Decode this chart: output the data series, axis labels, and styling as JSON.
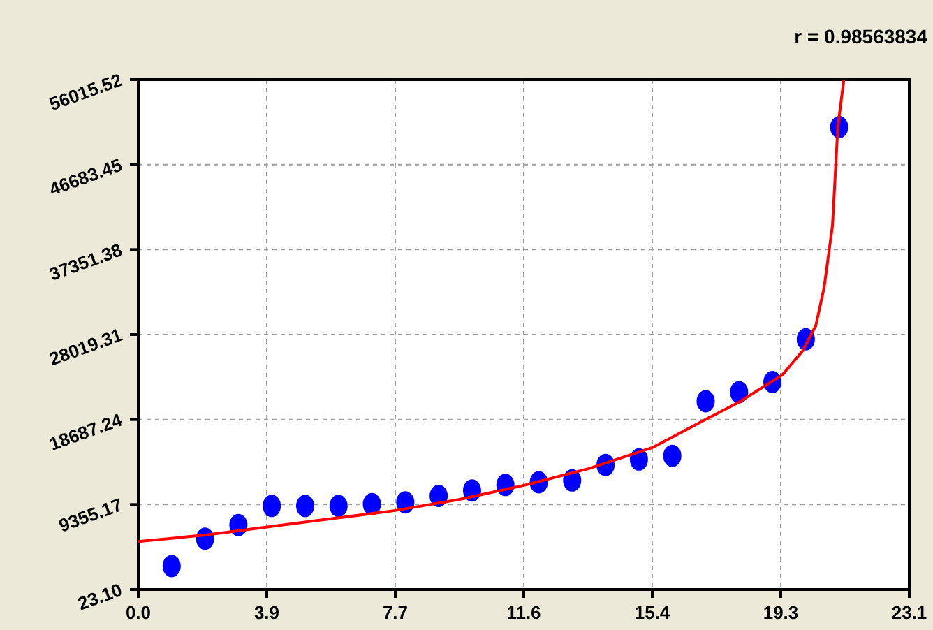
{
  "chart_data": {
    "type": "scatter",
    "annotations": [
      "r = 0.98563834"
    ],
    "xlim": [
      0,
      23.1
    ],
    "xticks": [
      {
        "value": 0,
        "label": "0.0"
      },
      {
        "value": 3.85,
        "label": "3.9"
      },
      7.7,
      {
        "value": 11.55,
        "label": "11.6"
      },
      15.4,
      {
        "value": 19.25,
        "label": "19.3"
      },
      23.1
    ],
    "ylim": [
      23.1,
      56015.52
    ],
    "yticks": [
      {
        "value": 23.1,
        "label": "23.10"
      },
      9355.17,
      18687.24,
      28019.31,
      37351.38,
      46683.45,
      56015.52
    ],
    "grid": true,
    "legend": false,
    "series": [
      {
        "color": "#0000ff",
        "marker": "circle",
        "x": [
          1,
          2,
          3,
          4,
          5,
          6,
          7,
          8,
          9,
          10,
          11,
          12,
          13,
          14,
          15,
          16,
          17,
          18,
          19,
          20,
          21
        ],
        "values": [
          2600,
          5600,
          7100,
          9200,
          9200,
          9200,
          9400,
          9600,
          10300,
          10900,
          11500,
          11800,
          12000,
          13700,
          14300,
          14700,
          20700,
          21700,
          22800,
          27500,
          50800
        ]
      },
      {
        "type": "line",
        "color": "#ff0000",
        "marker": "none",
        "line_style": "solid",
        "x": [
          0,
          2,
          3.9,
          5.8,
          7.7,
          9.6,
          11.6,
          13.5,
          15.4,
          17,
          18,
          19.3,
          19.9,
          20.3,
          20.55,
          20.8,
          20.96,
          21.14
        ],
        "values": [
          5300,
          6000,
          6900,
          7800,
          8700,
          9900,
          11500,
          13300,
          15600,
          18700,
          20600,
          23600,
          26200,
          29000,
          33200,
          40000,
          50800,
          56015.52
        ]
      }
    ]
  }
}
